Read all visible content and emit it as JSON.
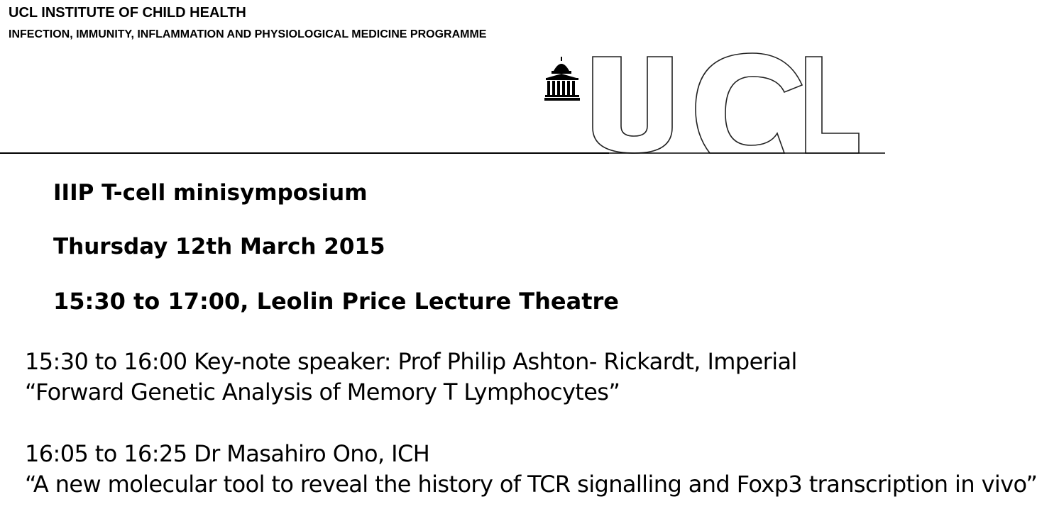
{
  "header": {
    "institute": "UCL INSTITUTE OF CHILD HEALTH",
    "programme": "INFECTION, IMMUNITY, INFLAMMATION AND PHYSIOLOGICAL MEDICINE PROGRAMME",
    "logo_text": "UCL",
    "logo_icon": "portico-dome-icon"
  },
  "event": {
    "title": "IIIP T-cell minisymposium",
    "date": "Thursday 12th March 2015",
    "time_venue": "15:30 to 17:00, Leolin Price Lecture Theatre"
  },
  "talks": [
    {
      "schedule": "15:30 to 16:00 Key-note speaker: Prof Philip Ashton- Rickardt, Imperial",
      "title": "“Forward Genetic Analysis of Memory T Lymphocytes”"
    },
    {
      "schedule": "16:05 to 16:25 Dr Masahiro Ono, ICH",
      "title": "“A new molecular tool to reveal the history of TCR signalling and Foxp3 transcription in vivo”"
    }
  ]
}
